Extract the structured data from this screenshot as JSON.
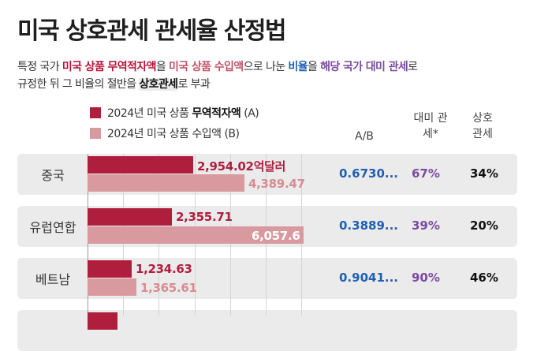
{
  "title": "미국 상호관세 관세율 산정법",
  "desc": {
    "l1": [
      "특정 국가 ",
      "미국 상품 무역적자액",
      "을 ",
      "미국 상품 수입액",
      "으로 나눈 ",
      "비율",
      "을 ",
      "해당 국가 대미 관세",
      "로"
    ],
    "l2": [
      "규정한 뒤 그 비율의 절반을 ",
      "상호관세",
      "로 부과"
    ]
  },
  "legend": {
    "a": {
      "pre": "2024년 미국 상품 ",
      "bold": "무역적자액",
      "post": " (A)"
    },
    "b": {
      "label": "2024년 미국 상품 수입액 (B)"
    }
  },
  "columns": {
    "ratio": "A/B",
    "us_tariff": "대미 관세*",
    "reciprocal": "상호 관세"
  },
  "colors": {
    "deficit": "#b01e3e",
    "imports": "#d99a9f",
    "ratio": "#1f5fb4",
    "tariff": "#7b4aa0"
  },
  "chart_data": {
    "type": "bar",
    "orientation": "horizontal",
    "unit": "억달러",
    "categories": [
      "중국",
      "유럽연합",
      "베트남"
    ],
    "series": [
      {
        "name": "2024년 미국 상품 무역적자액 (A)",
        "values": [
          2954.02,
          2355.71,
          1234.63
        ],
        "labels": [
          "2,954.02억달러",
          "2,355.71",
          "1,234.63"
        ]
      },
      {
        "name": "2024년 미국 상품 수입액 (B)",
        "values": [
          4389.47,
          6057.6,
          1365.61
        ],
        "labels": [
          "4,389.47",
          "6,057.6",
          "1,365.61"
        ]
      }
    ],
    "xlim": [
      0,
      6200
    ],
    "grid": true,
    "legend_position": "top-left",
    "table": {
      "ratio": [
        "0.6730...",
        "0.3889...",
        "0.9041..."
      ],
      "us_tariff": [
        "67%",
        "39%",
        "90%"
      ],
      "reciprocal": [
        "34%",
        "20%",
        "46%"
      ]
    }
  }
}
